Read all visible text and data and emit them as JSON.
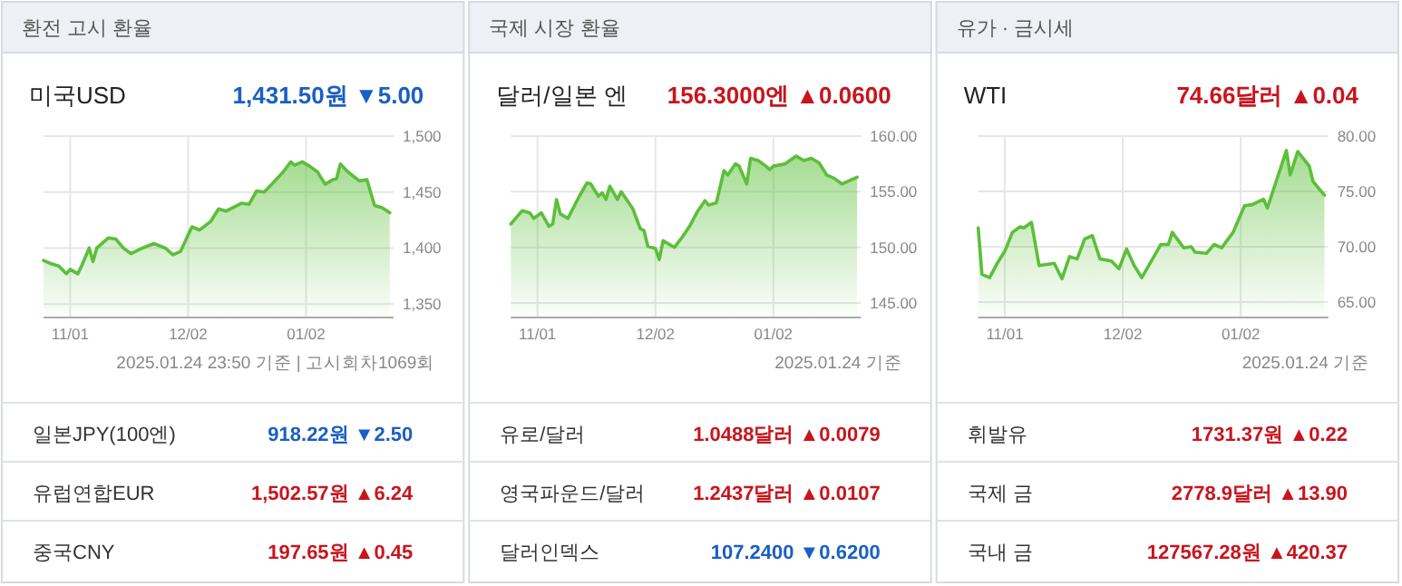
{
  "chart_data": [
    {
      "type": "area",
      "title": "환전 고시 환율",
      "subtitle": "미국USD",
      "grid": true,
      "x": [
        "2024-10-25",
        "2024-10-27",
        "2024-10-29",
        "2024-10-31",
        "2024-11-01",
        "2024-11-03",
        "2024-11-04",
        "2024-11-06",
        "2024-11-07",
        "2024-11-08",
        "2024-11-11",
        "2024-11-13",
        "2024-11-15",
        "2024-11-17",
        "2024-11-20",
        "2024-11-23",
        "2024-11-26",
        "2024-11-28",
        "2024-11-30",
        "2024-12-03",
        "2024-12-05",
        "2024-12-08",
        "2024-12-10",
        "2024-12-12",
        "2024-12-16",
        "2024-12-18",
        "2024-12-20",
        "2024-12-22",
        "2024-12-24",
        "2024-12-27",
        "2024-12-29",
        "2024-12-30",
        "2025-01-01",
        "2025-01-03",
        "2025-01-05",
        "2025-01-07",
        "2025-01-09",
        "2025-01-10",
        "2025-01-11",
        "2025-01-13",
        "2025-01-16",
        "2025-01-18",
        "2025-01-20",
        "2025-01-22",
        "2025-01-24"
      ],
      "series": [
        {
          "color": "#5cbf3a",
          "values": [
            1389,
            1386,
            1384,
            1377,
            1381,
            1377,
            1384,
            1400,
            1388,
            1400,
            1409,
            1408,
            1400,
            1395,
            1400,
            1404,
            1400,
            1394,
            1397,
            1419,
            1416,
            1424,
            1435,
            1433,
            1440,
            1439,
            1451,
            1450,
            1457,
            1468,
            1477,
            1474,
            1477,
            1473,
            1468,
            1457,
            1461,
            1462,
            1475,
            1468,
            1460,
            1461,
            1438,
            1436,
            1431.5
          ]
        }
      ],
      "xlim": [
        "2024-10-25",
        "2025-01-25"
      ],
      "xticks": [
        {
          "value": "2024-11-01",
          "label": "11/01"
        },
        {
          "value": "2024-12-02",
          "label": "12/02"
        },
        {
          "value": "2025-01-02",
          "label": "01/02"
        }
      ],
      "ylim": [
        1338,
        1500
      ],
      "yticks": [
        {
          "value": 1350,
          "label": "1,350"
        },
        {
          "value": 1400,
          "label": "1,400"
        },
        {
          "value": 1450,
          "label": "1,450"
        },
        {
          "value": 1500,
          "label": "1,500"
        }
      ],
      "annotations": [
        "1,431.50원 ▼5.00",
        "2025.01.24 23:50 기준 | 고시회차1069회",
        "일본JPY(100엔)",
        "918.22원 ▼2.50",
        "유럽연합EUR",
        "1,502.57원 ▲6.24",
        "중국CNY",
        "197.65원 ▲0.45"
      ]
    },
    {
      "type": "area",
      "title": "국제 시장 환율",
      "subtitle": "달러/일본 엔",
      "grid": true,
      "x": [
        "2024-10-25",
        "2024-10-28",
        "2024-10-30",
        "2024-10-31",
        "2024-11-02",
        "2024-11-04",
        "2024-11-05",
        "2024-11-06",
        "2024-11-07",
        "2024-11-09",
        "2024-11-12",
        "2024-11-14",
        "2024-11-15",
        "2024-11-17",
        "2024-11-18",
        "2024-11-19",
        "2024-11-20",
        "2024-11-22",
        "2024-11-23",
        "2024-11-26",
        "2024-11-28",
        "2024-11-29",
        "2024-11-30",
        "2024-12-02",
        "2024-12-03",
        "2024-12-04",
        "2024-12-07",
        "2024-12-09",
        "2024-12-11",
        "2024-12-13",
        "2024-12-15",
        "2024-12-16",
        "2024-12-18",
        "2024-12-20",
        "2024-12-21",
        "2024-12-23",
        "2024-12-24",
        "2024-12-26",
        "2024-12-27",
        "2024-12-29",
        "2024-12-31",
        "2025-01-01",
        "2025-01-02",
        "2025-01-05",
        "2025-01-08",
        "2025-01-10",
        "2025-01-12",
        "2025-01-14",
        "2025-01-16",
        "2025-01-18",
        "2025-01-20",
        "2025-01-22",
        "2025-01-24"
      ],
      "series": [
        {
          "color": "#5cbf3a",
          "values": [
            152.1,
            153.3,
            153.1,
            152.6,
            153.1,
            151.9,
            152.1,
            154.3,
            153.0,
            152.6,
            154.6,
            155.8,
            155.7,
            154.6,
            154.9,
            154.3,
            155.5,
            154.3,
            155.0,
            153.5,
            151.7,
            151.5,
            150.1,
            149.9,
            148.9,
            150.6,
            150.0,
            150.9,
            151.9,
            153.2,
            154.2,
            153.8,
            154.0,
            156.9,
            156.5,
            157.5,
            157.3,
            155.7,
            158.0,
            157.8,
            157.3,
            157.0,
            157.3,
            157.5,
            158.2,
            157.8,
            158.0,
            157.6,
            156.5,
            156.2,
            155.7,
            156.0,
            156.3
          ]
        }
      ],
      "xlim": [
        "2024-10-25",
        "2025-01-25"
      ],
      "xticks": [
        {
          "value": "2024-11-01",
          "label": "11/01"
        },
        {
          "value": "2024-12-02",
          "label": "12/02"
        },
        {
          "value": "2025-01-02",
          "label": "01/02"
        }
      ],
      "ylim": [
        143.7,
        160
      ],
      "yticks": [
        {
          "value": 145,
          "label": "145.00"
        },
        {
          "value": 150,
          "label": "150.00"
        },
        {
          "value": 155,
          "label": "155.00"
        },
        {
          "value": 160,
          "label": "160.00"
        }
      ],
      "annotations": [
        "156.3000엔 ▲0.0600",
        "2025.01.24 기준",
        "유로/달러",
        "1.0488달러 ▲0.0079",
        "영국파운드/달러",
        "1.2437달러 ▲0.0107",
        "달러인덱스",
        "107.2400 ▼0.6200"
      ]
    },
    {
      "type": "area",
      "title": "유가 · 금시세",
      "subtitle": "WTI",
      "grid": true,
      "x": [
        "2024-10-25",
        "2024-10-26",
        "2024-10-28",
        "2024-10-30",
        "2024-11-01",
        "2024-11-03",
        "2024-11-05",
        "2024-11-06",
        "2024-11-08",
        "2024-11-10",
        "2024-11-14",
        "2024-11-16",
        "2024-11-18",
        "2024-11-20",
        "2024-11-22",
        "2024-11-24",
        "2024-11-26",
        "2024-11-29",
        "2024-12-01",
        "2024-12-03",
        "2024-12-05",
        "2024-12-07",
        "2024-12-09",
        "2024-12-12",
        "2024-12-14",
        "2024-12-15",
        "2024-12-18",
        "2024-12-20",
        "2024-12-21",
        "2024-12-24",
        "2024-12-26",
        "2024-12-28",
        "2024-12-31",
        "2025-01-03",
        "2025-01-05",
        "2025-01-08",
        "2025-01-09",
        "2025-01-14",
        "2025-01-15",
        "2025-01-17",
        "2025-01-20",
        "2025-01-21",
        "2025-01-24"
      ],
      "series": [
        {
          "color": "#5cbf3a",
          "values": [
            71.7,
            67.5,
            67.2,
            68.5,
            69.6,
            71.3,
            71.8,
            71.7,
            72.2,
            68.3,
            68.5,
            67.1,
            69.1,
            68.9,
            70.7,
            71.0,
            68.9,
            68.7,
            68.0,
            69.8,
            68.3,
            67.2,
            68.4,
            70.2,
            70.2,
            71.3,
            69.9,
            70.0,
            69.5,
            69.4,
            70.2,
            69.9,
            71.3,
            73.7,
            73.8,
            74.3,
            73.5,
            78.7,
            76.5,
            78.6,
            77.3,
            75.9,
            74.66
          ]
        }
      ],
      "xlim": [
        "2024-10-25",
        "2025-01-25"
      ],
      "xticks": [
        {
          "value": "2024-11-01",
          "label": "11/01"
        },
        {
          "value": "2024-12-02",
          "label": "12/02"
        },
        {
          "value": "2025-01-02",
          "label": "01/02"
        }
      ],
      "ylim": [
        63.6,
        80
      ],
      "yticks": [
        {
          "value": 65,
          "label": "65.00"
        },
        {
          "value": 70,
          "label": "70.00"
        },
        {
          "value": 75,
          "label": "75.00"
        },
        {
          "value": 80,
          "label": "80.00"
        }
      ],
      "annotations": [
        "74.66달러 ▲0.04",
        "2025.01.24 기준",
        "휘발유",
        "1731.37원 ▲0.22",
        "국제 금",
        "2778.9달러 ▲13.90",
        "국내 금",
        "127567.28원 ▲420.37"
      ]
    }
  ]
}
